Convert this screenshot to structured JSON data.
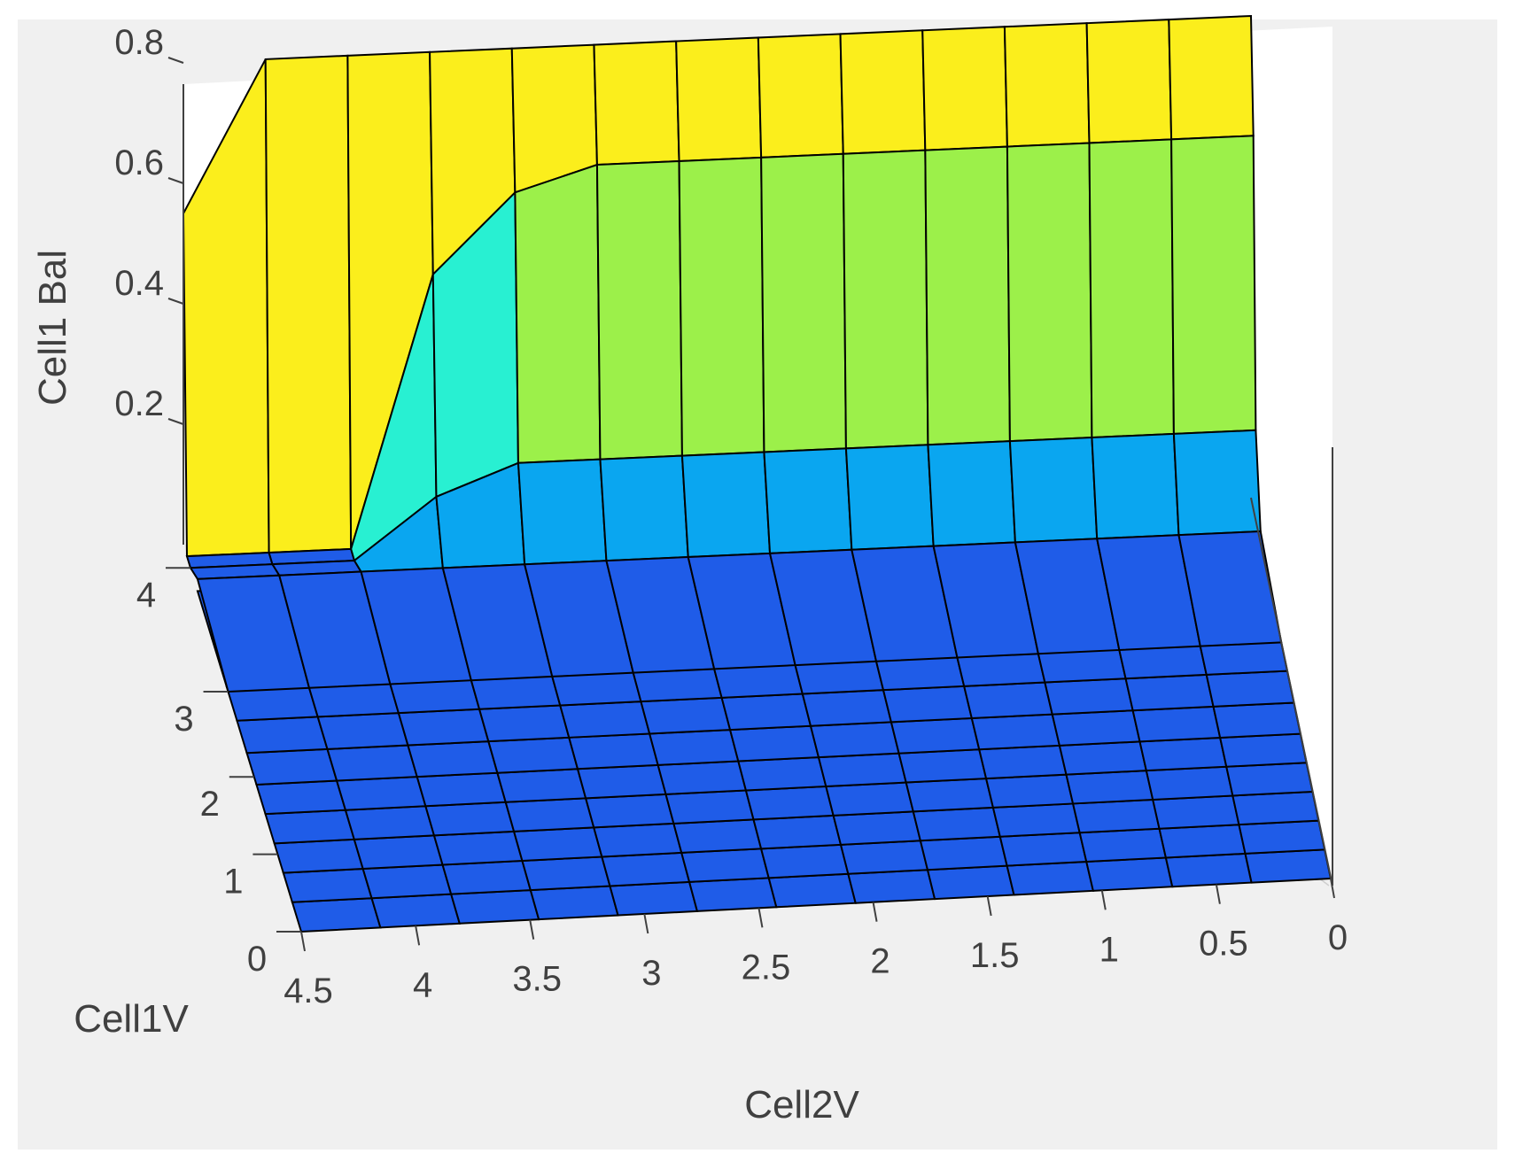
{
  "chart_data": {
    "type": "surface",
    "xlabel": "Cell2V",
    "ylabel": "Cell1V",
    "zlabel": "Cell1 Bal",
    "x_ticks": [
      "4.5",
      "4",
      "3.5",
      "3",
      "2.5",
      "2",
      "1.5",
      "1",
      "0.5",
      "0"
    ],
    "y_ticks": [
      "0",
      "1",
      "2",
      "3",
      "4"
    ],
    "z_ticks": [
      "0.2",
      "0.4",
      "0.6",
      "0.8"
    ],
    "x_range": [
      0,
      4.5
    ],
    "y_range": [
      0,
      4.2
    ],
    "z_range": [
      0,
      0.8
    ],
    "grid": true,
    "colormap": [
      "#1f5ce8",
      "#0aa6f0",
      "#14dce6",
      "#28f0d2",
      "#9cf04a",
      "#e6f032",
      "#fbee1c"
    ],
    "surface_rows": [
      {
        "cell1v": 0.0,
        "cell1bal": [
          0,
          0,
          0,
          0,
          0,
          0,
          0,
          0,
          0,
          0,
          0,
          0,
          0,
          0
        ]
      },
      {
        "cell1v": 3.0,
        "cell1bal": [
          0,
          0,
          0,
          0,
          0,
          0,
          0,
          0,
          0,
          0,
          0,
          0,
          0,
          0
        ]
      },
      {
        "cell1v": 3.8,
        "cell1bal": [
          0.02,
          0.02,
          0.02,
          0.02,
          0.02,
          0.02,
          0.02,
          0.02,
          0.02,
          0.02,
          0.02,
          0.02,
          0.02,
          0.02
        ]
      },
      {
        "cell1v": 4.0,
        "cell1bal": [
          0,
          0,
          0,
          0.1,
          0.15,
          0.15,
          0.15,
          0.15,
          0.15,
          0.15,
          0.15,
          0.15,
          0.15,
          0.15
        ]
      },
      {
        "cell1v": 4.05,
        "cell1bal": [
          0,
          0,
          0,
          0.45,
          0.58,
          0.62,
          0.62,
          0.62,
          0.62,
          0.62,
          0.62,
          0.62,
          0.62,
          0.62
        ]
      },
      {
        "cell1v": 4.1,
        "cell1bal": [
          0.55,
          0.8,
          0.8,
          0.8,
          0.8,
          0.8,
          0.8,
          0.8,
          0.8,
          0.8,
          0.8,
          0.8,
          0.8,
          0.8
        ]
      }
    ]
  }
}
